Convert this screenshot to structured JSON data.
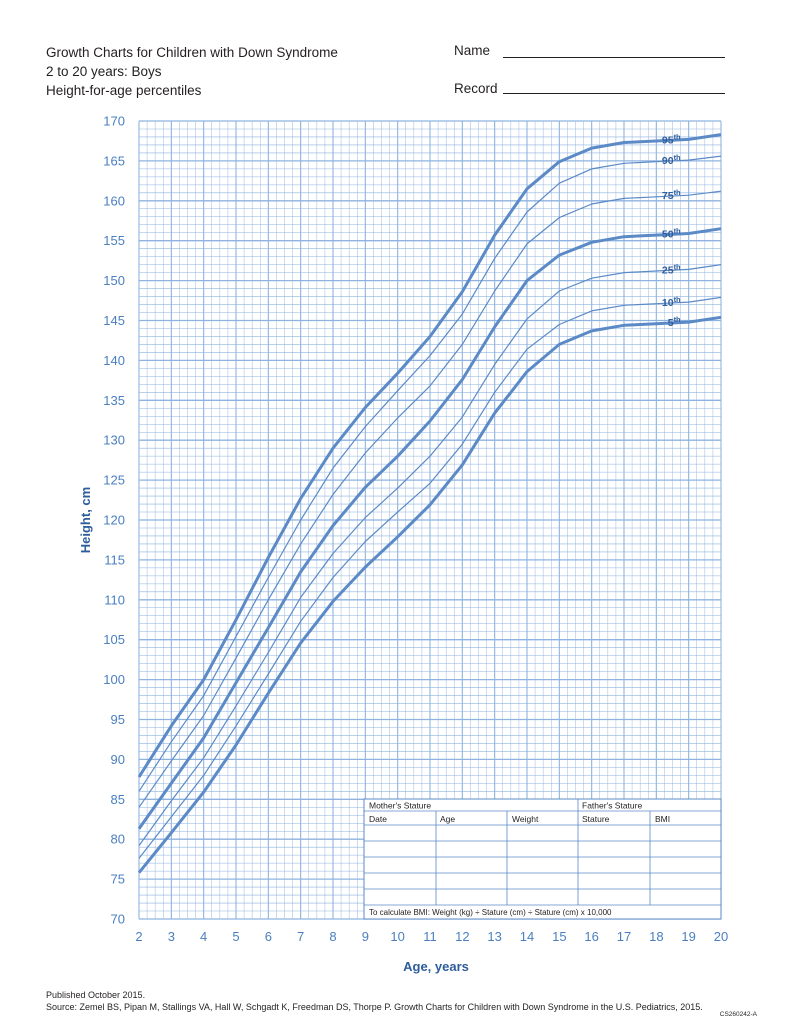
{
  "header": {
    "title_line1": "Growth Charts for Children with Down Syndrome",
    "title_line2": "2 to 20 years: Boys",
    "title_line3": "Height-for-age percentiles",
    "name_label": "Name",
    "record_label": "Record"
  },
  "footer": {
    "published": "Published October 2015.",
    "source": "Source: Zemel BS, Pipan M, Stallings VA, Hall W, Schgadt K, Freedman DS, Thorpe P. Growth Charts for Children with Down Syndrome in the U.S. Pediatrics, 2015.",
    "code": "CS260242-A"
  },
  "record_table": {
    "mothers_stature": "Mother's Stature",
    "fathers_stature": "Father's Stature",
    "columns": [
      "Date",
      "Age",
      "Weight",
      "Stature",
      "BMI"
    ],
    "bmi_formula": "To calculate BMI: Weight (kg) ÷ Stature (cm) ÷ Stature (cm) x 10,000"
  },
  "colors": {
    "line": "#5b8ac6",
    "grid": "#8fb3e0",
    "axis_text": "#4a7fc1",
    "label": "#2e5d9c"
  },
  "chart_data": {
    "type": "line",
    "xlabel": "Age, years",
    "ylabel": "Height, cm",
    "xlim": [
      2,
      20
    ],
    "ylim": [
      70,
      170
    ],
    "x_ticks": [
      2,
      3,
      4,
      5,
      6,
      7,
      8,
      9,
      10,
      11,
      12,
      13,
      14,
      15,
      16,
      17,
      18,
      19,
      20
    ],
    "y_ticks": [
      70,
      75,
      80,
      85,
      90,
      95,
      100,
      105,
      110,
      115,
      120,
      125,
      130,
      135,
      140,
      145,
      150,
      155,
      160,
      165,
      170
    ],
    "grid": true,
    "x": [
      2,
      3,
      4,
      5,
      6,
      7,
      8,
      9,
      10,
      11,
      12,
      13,
      14,
      15,
      16,
      17,
      18,
      19,
      20
    ],
    "series": [
      {
        "name": "95th",
        "label_base": "95",
        "label_sup": "th",
        "bold": true,
        "values": [
          87.8,
          94.2,
          100.0,
          107.5,
          115.3,
          122.7,
          129.0,
          134.1,
          138.4,
          143.0,
          148.6,
          155.7,
          161.5,
          164.9,
          166.6,
          167.3,
          167.5,
          167.7,
          168.3
        ]
      },
      {
        "name": "90th",
        "label_base": "90",
        "label_sup": "th",
        "bold": false,
        "values": [
          86.0,
          92.2,
          98.0,
          105.4,
          112.8,
          120.0,
          126.5,
          131.7,
          136.2,
          140.6,
          145.8,
          152.8,
          158.6,
          162.2,
          164.0,
          164.7,
          164.9,
          165.1,
          165.6
        ]
      },
      {
        "name": "75th",
        "label_base": "75",
        "label_sup": "th",
        "bold": false,
        "values": [
          84.0,
          89.8,
          95.5,
          102.7,
          110.0,
          117.0,
          123.2,
          128.4,
          132.8,
          136.8,
          142.0,
          148.7,
          154.6,
          157.9,
          159.6,
          160.3,
          160.5,
          160.7,
          161.2
        ]
      },
      {
        "name": "50th",
        "label_base": "50",
        "label_sup": "th",
        "bold": true,
        "values": [
          81.3,
          87.0,
          92.7,
          99.6,
          106.5,
          113.5,
          119.3,
          124.1,
          128.0,
          132.4,
          137.6,
          144.2,
          150.0,
          153.2,
          154.8,
          155.5,
          155.7,
          155.9,
          156.5
        ]
      },
      {
        "name": "25th",
        "label_base": "25",
        "label_sup": "th",
        "bold": false,
        "values": [
          79.2,
          84.8,
          90.2,
          96.7,
          103.4,
          110.3,
          115.8,
          120.3,
          124.0,
          128.0,
          132.9,
          139.5,
          145.2,
          148.7,
          150.3,
          151.0,
          151.2,
          151.4,
          152.0
        ]
      },
      {
        "name": "10th",
        "label_base": "10",
        "label_sup": "th",
        "bold": false,
        "values": [
          77.6,
          82.8,
          88.0,
          94.2,
          100.7,
          107.3,
          112.8,
          117.3,
          121.0,
          124.6,
          129.5,
          136.0,
          141.4,
          144.5,
          146.2,
          146.9,
          147.1,
          147.3,
          147.9
        ]
      },
      {
        "name": "5th",
        "label_base": "5",
        "label_sup": "th",
        "bold": true,
        "values": [
          75.8,
          80.8,
          85.9,
          91.8,
          98.3,
          104.6,
          109.8,
          114.1,
          117.9,
          121.9,
          126.9,
          133.4,
          138.6,
          142.0,
          143.7,
          144.4,
          144.6,
          144.8,
          145.4
        ]
      }
    ]
  }
}
